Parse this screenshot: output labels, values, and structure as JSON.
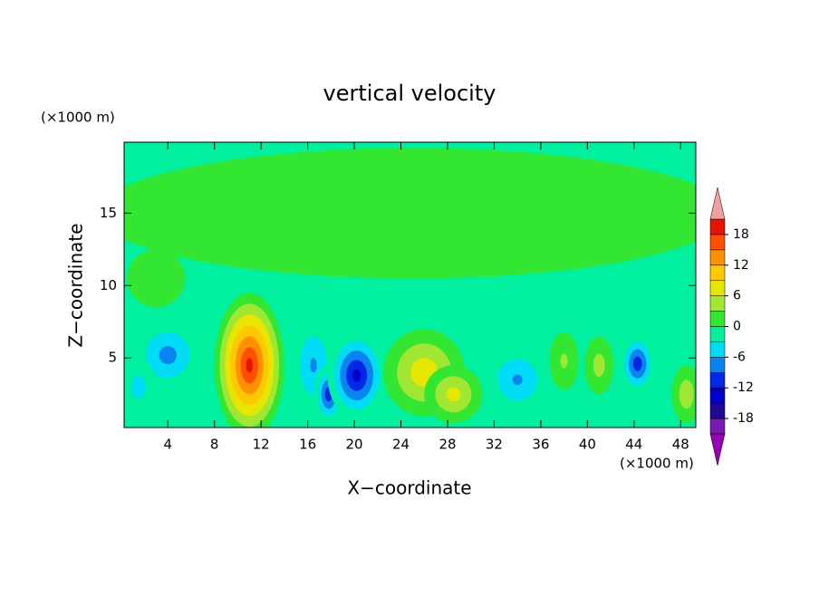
{
  "chart_data": {
    "type": "contour",
    "title": "vertical velocity",
    "xlabel": "X−coordinate",
    "ylabel": "Z−coordinate",
    "xunit": "(×1000 m)",
    "yunit": "(×1000 m)",
    "xlim": [
      0.25,
      49.3
    ],
    "ylim": [
      0.2,
      19.9
    ],
    "xticks": [
      4,
      8,
      12,
      16,
      20,
      24,
      28,
      32,
      36,
      40,
      44,
      48
    ],
    "yticks": [
      5,
      10,
      15
    ],
    "cells": [
      {
        "x": 25,
        "z": 15,
        "value": 2,
        "width": 54,
        "height": 9
      },
      {
        "x": 3,
        "z": 10.5,
        "value": 1,
        "width": 5,
        "height": 4
      },
      {
        "x": 4,
        "z": 5.2,
        "value": -8,
        "width": 6,
        "height": 5
      },
      {
        "x": 1.5,
        "z": 3,
        "value": -5,
        "width": 3,
        "height": 4
      },
      {
        "x": 11,
        "z": 4.5,
        "value": 20,
        "width": 6,
        "height": 10
      },
      {
        "x": 16.5,
        "z": 4.5,
        "value": -7,
        "width": 4,
        "height": 7
      },
      {
        "x": 17.8,
        "z": 2.5,
        "value": -12,
        "width": 2.5,
        "height": 4
      },
      {
        "x": 20.2,
        "z": 3.8,
        "value": -14,
        "width": 5,
        "height": 6
      },
      {
        "x": 26,
        "z": 4,
        "value": 9,
        "width": 7,
        "height": 6
      },
      {
        "x": 28.5,
        "z": 2.5,
        "value": 8,
        "width": 5,
        "height": 4
      },
      {
        "x": 34,
        "z": 3.5,
        "value": -7,
        "width": 6,
        "height": 5
      },
      {
        "x": 38,
        "z": 4.8,
        "value": 4,
        "width": 2.5,
        "height": 4
      },
      {
        "x": 41,
        "z": 4.5,
        "value": 5,
        "width": 2.5,
        "height": 4
      },
      {
        "x": 44.3,
        "z": 4.6,
        "value": -12,
        "width": 3,
        "height": 4
      },
      {
        "x": 48.5,
        "z": 2.5,
        "value": 6,
        "width": 2.5,
        "height": 4
      }
    ],
    "colorbar": {
      "levels": [
        -21,
        -18,
        -15,
        -12,
        -9,
        -6,
        -3,
        0,
        3,
        6,
        9,
        12,
        15,
        18,
        21
      ],
      "colors": [
        "#7a18b4",
        "#1e0a96",
        "#0000c8",
        "#0028e6",
        "#0a82f0",
        "#00dcf5",
        "#00f0a0",
        "#32e632",
        "#a0e632",
        "#e6e600",
        "#ffc800",
        "#ff9100",
        "#ff5000",
        "#e61400"
      ],
      "low_color": "#9600b4",
      "high_color": "#f0a0a0",
      "ticks": [
        -18,
        -12,
        -6,
        0,
        6,
        12,
        18
      ]
    }
  }
}
